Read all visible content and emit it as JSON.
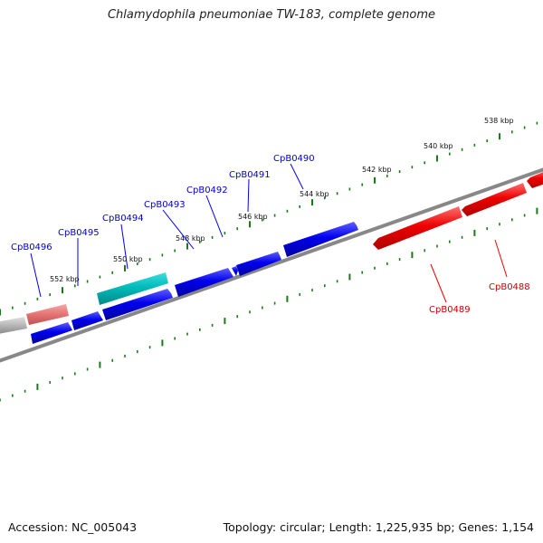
{
  "title": "Chlamydophila pneumoniae TW-183, complete genome",
  "footer": {
    "accession": "Accession: NC_005043",
    "stats": "Topology: circular; Length: 1,225,935 bp; Genes: 1,154"
  },
  "colors": {
    "forward": "#0000ee",
    "reverse": "#ee0000",
    "rna": "#00bbbb",
    "pseudo": "#e87878",
    "other": "#bbbbbb",
    "backbone": "#888888",
    "ticks": "#1a7a1a",
    "label_forward": "#0000cc",
    "label_reverse": "#cc0000"
  },
  "ruler": [
    "538 kbp",
    "540 kbp",
    "542 kbp",
    "544 kbp",
    "546 kbp",
    "548 kbp",
    "550 kbp",
    "552 kbp"
  ],
  "gene_labels": {
    "forward": [
      "CpB0490",
      "CpB0491",
      "CpB0492",
      "CpB0493",
      "CpB0494",
      "CpB0495",
      "CpB0496"
    ],
    "reverse": [
      "CpB0488",
      "CpB0489"
    ]
  }
}
